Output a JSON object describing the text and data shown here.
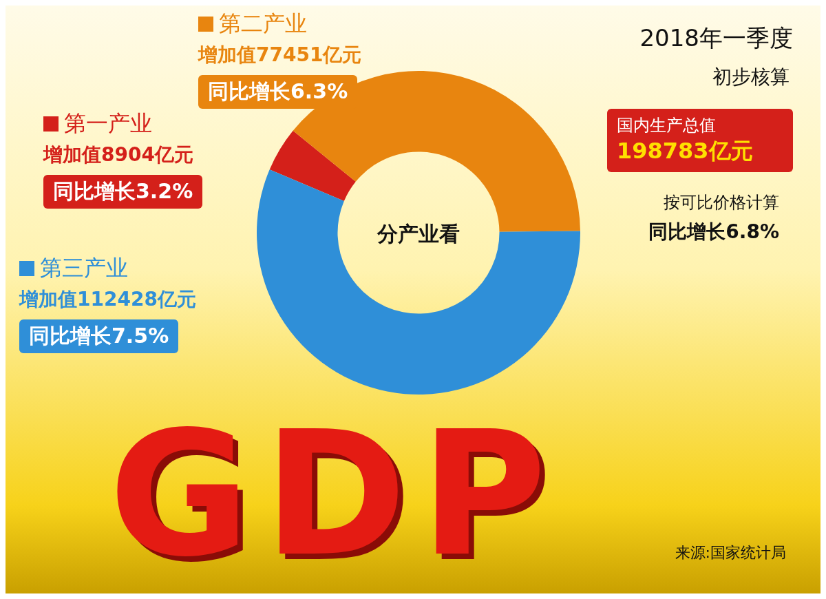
{
  "chart_data": {
    "type": "donut",
    "title": "2018年一季度",
    "subtitle": "初步核算",
    "categories": [
      "第一产业",
      "第二产业",
      "第三产业"
    ],
    "values": [
      8904,
      77451,
      112428
    ],
    "colors": [
      "#d4201a",
      "#e8850f",
      "#2f8fd8"
    ],
    "legend": "left",
    "value_labels": [
      "增加值8904亿元",
      "增加值77451亿元",
      "增加值112428亿元"
    ],
    "annotations": [
      {
        "text": "同比增长3.2%",
        "x": "第一产业"
      },
      {
        "text": "同比增长6.3%",
        "x": "第二产业"
      },
      {
        "text": "同比增长7.5%",
        "x": "第三产业"
      },
      "国内生产总值",
      "198783亿元",
      "按可比价格计算",
      "同比增长6.8%",
      "分产业看",
      "GDP",
      "来源:国家统计局"
    ]
  }
}
